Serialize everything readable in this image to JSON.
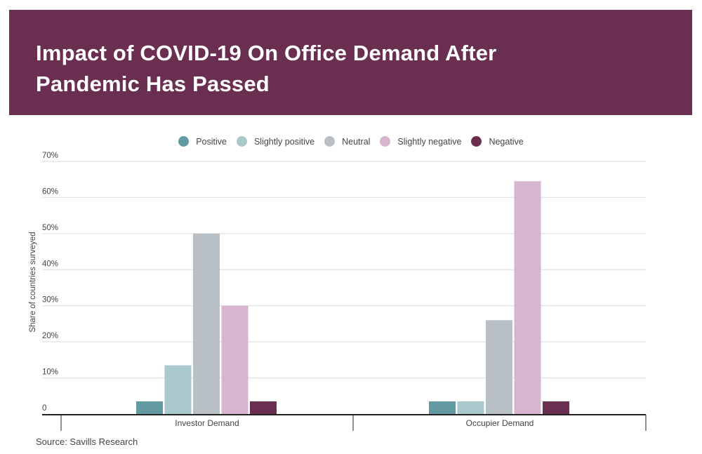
{
  "header": {
    "title_line1": "Impact of COVID-19 On Office Demand After",
    "title_line2": "Pandemic Has Passed",
    "background": "#6a2e51"
  },
  "source": "Source: Savills Research",
  "chart_data": {
    "type": "bar",
    "title": "Impact of COVID-19 On Office Demand After Pandemic Has Passed",
    "xlabel": "",
    "ylabel": "Share of countries surveyed",
    "ylim": [
      0,
      70
    ],
    "yticks": [
      0,
      10,
      20,
      30,
      40,
      50,
      60,
      70
    ],
    "ytick_labels": [
      "0",
      "10%",
      "20%",
      "30%",
      "40%",
      "50%",
      "60%",
      "70%"
    ],
    "grid": true,
    "legend_position": "top-center",
    "categories": [
      "Investor Demand",
      "Occupier Demand"
    ],
    "series": [
      {
        "name": "Positive",
        "color": "#639aa2",
        "values": [
          3.5,
          3.5
        ]
      },
      {
        "name": "Slightly positive",
        "color": "#a9c9cc",
        "values": [
          13.5,
          3.5
        ]
      },
      {
        "name": "Neutral",
        "color": "#b8bfc5",
        "values": [
          50,
          26
        ]
      },
      {
        "name": "Slightly negative",
        "color": "#d7b4cf",
        "values": [
          30,
          64.5
        ]
      },
      {
        "name": "Negative",
        "color": "#6a2e51",
        "values": [
          3.5,
          3.5
        ]
      }
    ]
  }
}
